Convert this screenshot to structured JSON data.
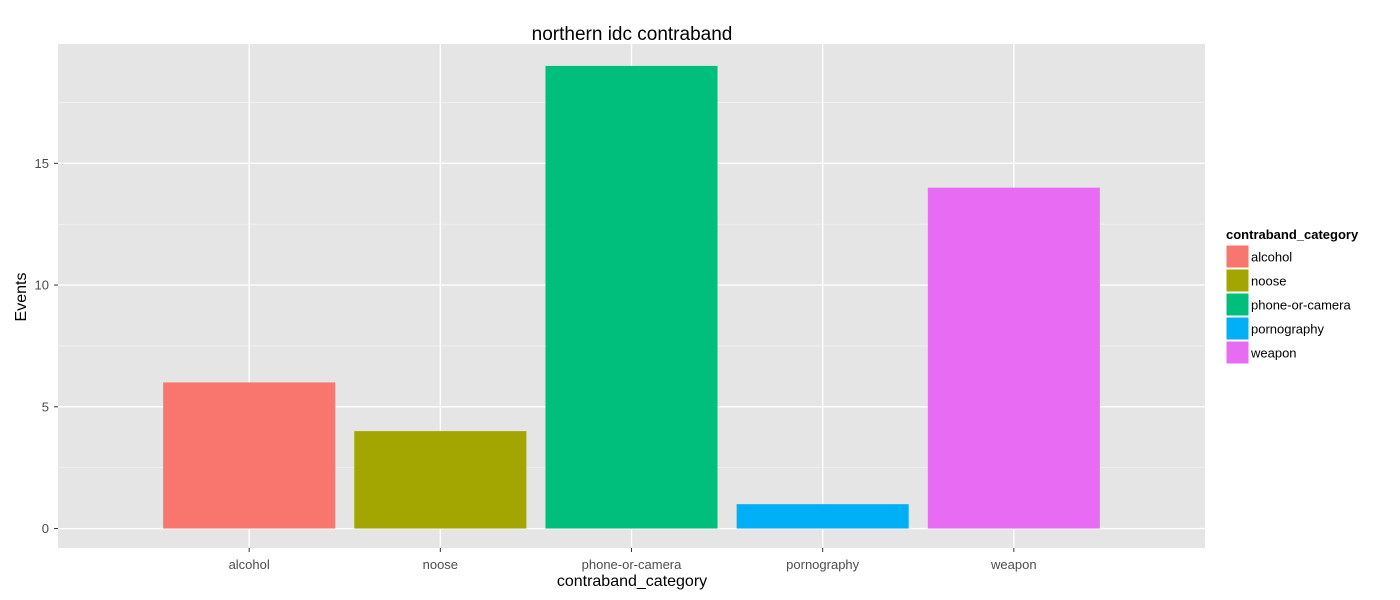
{
  "chart_data": {
    "type": "bar",
    "title": "northern idc contraband",
    "xlabel": "contraband_category",
    "ylabel": "Events",
    "categories": [
      "alcohol",
      "noose",
      "phone-or-camera",
      "pornography",
      "weapon"
    ],
    "values": [
      6,
      4,
      19,
      1,
      14
    ],
    "colors": [
      "#F8766D",
      "#A3A500",
      "#00BF7D",
      "#00B0F6",
      "#E76BF3"
    ],
    "ylim": [
      -0.8,
      19.9
    ],
    "yticks": [
      0,
      5,
      10,
      15
    ],
    "grid": true,
    "legend": {
      "title": "contraband_category",
      "position": "right",
      "entries": [
        "alcohol",
        "noose",
        "phone-or-camera",
        "pornography",
        "weapon"
      ]
    }
  }
}
